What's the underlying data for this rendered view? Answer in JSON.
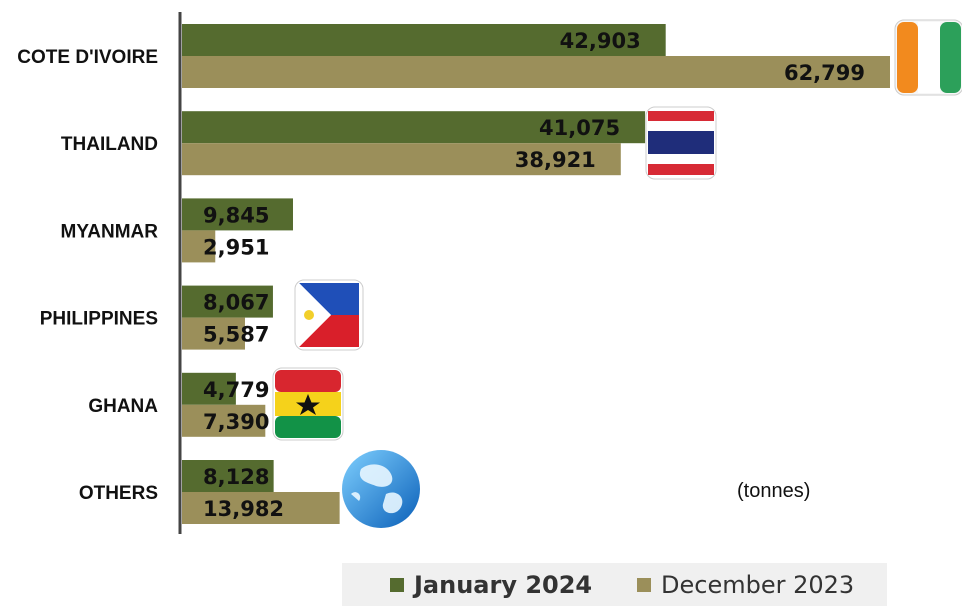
{
  "colors": {
    "jan2024": "#556b2f",
    "dec2023": "#9b8f5a",
    "axis": "#444444",
    "label": "#111111"
  },
  "unit_note": "(tonnes)",
  "legend": {
    "jan_label": "January 2024",
    "dec_label": "December 2023"
  },
  "flags": [
    "cote-divoire-flag-icon",
    "thailand-flag-icon",
    "philippines-flag-icon",
    "ghana-flag-icon",
    "globe-icon"
  ],
  "chart_data": {
    "type": "bar",
    "orientation": "horizontal",
    "categories": [
      "COTE D'IVOIRE",
      "THAILAND",
      "MYANMAR",
      "PHILIPPINES",
      "GHANA",
      "OTHERS"
    ],
    "series": [
      {
        "name": "January 2024",
        "values": [
          42903,
          41075,
          9845,
          8067,
          4779,
          8128
        ],
        "labels": [
          "42,903",
          "41,075",
          "9,845",
          "8,067",
          "4,779",
          "8,128"
        ]
      },
      {
        "name": "December 2023",
        "values": [
          62799,
          38921,
          2951,
          5587,
          7390,
          13982
        ],
        "labels": [
          "62,799",
          "38,921",
          "2,951",
          "5,587",
          "7,390",
          "13,982"
        ]
      }
    ],
    "xlim": [
      0,
      62799
    ],
    "grid": false,
    "legend_position": "bottom"
  }
}
